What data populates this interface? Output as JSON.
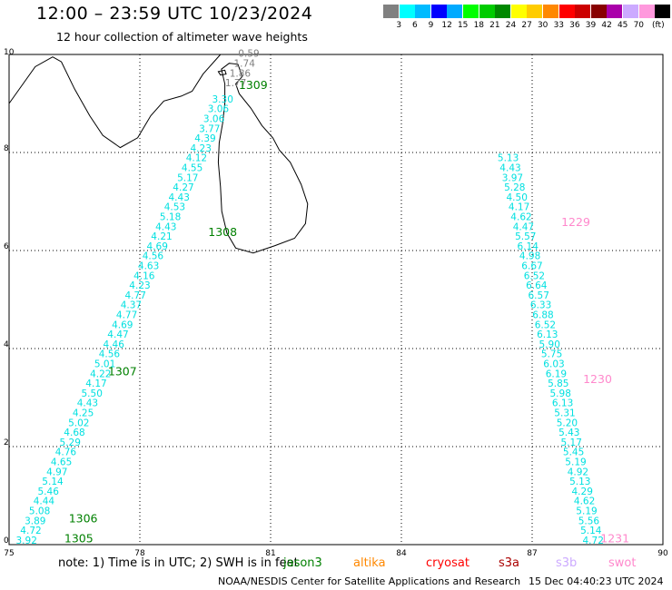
{
  "header": {
    "title": "12:00 – 23:59 UTC 10/23/2024",
    "subtitle": "12 hour collection of altimeter wave heights"
  },
  "legend": {
    "unit": "(ft)",
    "items": [
      {
        "label": "",
        "color": "#808080"
      },
      {
        "label": "3",
        "color": "#00ffff"
      },
      {
        "label": "6",
        "color": "#00bbff"
      },
      {
        "label": "9",
        "color": "#0000ff"
      },
      {
        "label": "12",
        "color": "#00aaff"
      },
      {
        "label": "15",
        "color": "#00ff00"
      },
      {
        "label": "18",
        "color": "#00cc00"
      },
      {
        "label": "21",
        "color": "#008800"
      },
      {
        "label": "24",
        "color": "#ffff00"
      },
      {
        "label": "27",
        "color": "#ffcc00"
      },
      {
        "label": "30",
        "color": "#ff8800"
      },
      {
        "label": "33",
        "color": "#ff0000"
      },
      {
        "label": "36",
        "color": "#cc0000"
      },
      {
        "label": "39",
        "color": "#880000"
      },
      {
        "label": "42",
        "color": "#aa00aa"
      },
      {
        "label": "45",
        "color": "#ccaaff"
      },
      {
        "label": "70",
        "color": "#ff99dd"
      },
      {
        "label": "",
        "color": "#000000"
      }
    ]
  },
  "map": {
    "lon_range": [
      75,
      90
    ],
    "lat_range": [
      0,
      10
    ],
    "lon_ticks": [
      "75",
      "78",
      "81",
      "84",
      "87",
      "90"
    ],
    "lat_ticks": [
      "0",
      "2",
      "4",
      "6",
      "8",
      "10"
    ],
    "grid": true,
    "colors": {
      "track": "#00e0e0",
      "gray": "#808080",
      "jason": "#008000",
      "swot": "#ff88cc"
    }
  },
  "chart_data": {
    "type": "scatter",
    "tracks": [
      {
        "pass": "1305/1306/1307/1308/1309",
        "color": "#00e0e0",
        "points": [
          {
            "lon": 75.4,
            "lat": 0.02,
            "v": "3.92"
          },
          {
            "lon": 75.5,
            "lat": 0.22,
            "v": "4.72"
          },
          {
            "lon": 75.6,
            "lat": 0.42,
            "v": "3.89"
          },
          {
            "lon": 75.7,
            "lat": 0.62,
            "v": "5.08"
          },
          {
            "lon": 75.8,
            "lat": 0.82,
            "v": "4.44"
          },
          {
            "lon": 75.9,
            "lat": 1.02,
            "v": "5.46"
          },
          {
            "lon": 76.0,
            "lat": 1.22,
            "v": "5.14"
          },
          {
            "lon": 76.1,
            "lat": 1.42,
            "v": "4.97"
          },
          {
            "lon": 76.2,
            "lat": 1.62,
            "v": "4.65"
          },
          {
            "lon": 76.3,
            "lat": 1.82,
            "v": "4.76"
          },
          {
            "lon": 76.4,
            "lat": 2.02,
            "v": "5.29"
          },
          {
            "lon": 76.5,
            "lat": 2.22,
            "v": "4.68"
          },
          {
            "lon": 76.6,
            "lat": 2.42,
            "v": "5.02"
          },
          {
            "lon": 76.7,
            "lat": 2.62,
            "v": "4.25"
          },
          {
            "lon": 76.8,
            "lat": 2.82,
            "v": "4.43"
          },
          {
            "lon": 76.9,
            "lat": 3.02,
            "v": "5.50"
          },
          {
            "lon": 77.0,
            "lat": 3.22,
            "v": "4.17"
          },
          {
            "lon": 77.1,
            "lat": 3.42,
            "v": "4.22"
          },
          {
            "lon": 77.2,
            "lat": 3.62,
            "v": "5.01"
          },
          {
            "lon": 77.3,
            "lat": 3.82,
            "v": "4.56"
          },
          {
            "lon": 77.4,
            "lat": 4.02,
            "v": "4.46"
          },
          {
            "lon": 77.5,
            "lat": 4.22,
            "v": "4.47"
          },
          {
            "lon": 77.6,
            "lat": 4.42,
            "v": "4.69"
          },
          {
            "lon": 77.7,
            "lat": 4.62,
            "v": "4.77"
          },
          {
            "lon": 77.8,
            "lat": 4.82,
            "v": "4.37"
          },
          {
            "lon": 77.9,
            "lat": 5.02,
            "v": "4.77"
          },
          {
            "lon": 78.0,
            "lat": 5.22,
            "v": "4.23"
          },
          {
            "lon": 78.1,
            "lat": 5.42,
            "v": "4.16"
          },
          {
            "lon": 78.2,
            "lat": 5.62,
            "v": "4.63"
          },
          {
            "lon": 78.3,
            "lat": 5.82,
            "v": "4.56"
          },
          {
            "lon": 78.4,
            "lat": 6.02,
            "v": "4.69"
          },
          {
            "lon": 78.5,
            "lat": 6.22,
            "v": "4.21"
          },
          {
            "lon": 78.6,
            "lat": 6.42,
            "v": "4.43"
          },
          {
            "lon": 78.7,
            "lat": 6.62,
            "v": "5.18"
          },
          {
            "lon": 78.8,
            "lat": 6.82,
            "v": "4.53"
          },
          {
            "lon": 78.9,
            "lat": 7.02,
            "v": "4.43"
          },
          {
            "lon": 79.0,
            "lat": 7.22,
            "v": "4.27"
          },
          {
            "lon": 79.1,
            "lat": 7.42,
            "v": "5.17"
          },
          {
            "lon": 79.2,
            "lat": 7.62,
            "v": "4.55"
          },
          {
            "lon": 79.3,
            "lat": 7.82,
            "v": "4.12"
          },
          {
            "lon": 79.4,
            "lat": 8.02,
            "v": "4.23"
          },
          {
            "lon": 79.5,
            "lat": 8.22,
            "v": "4.39"
          },
          {
            "lon": 79.6,
            "lat": 8.42,
            "v": "3.77"
          },
          {
            "lon": 79.7,
            "lat": 8.62,
            "v": "3.06"
          },
          {
            "lon": 79.8,
            "lat": 8.82,
            "v": "3.06"
          },
          {
            "lon": 79.9,
            "lat": 9.02,
            "v": "3.30"
          }
        ]
      },
      {
        "pass": "near-coast",
        "color": "#808080",
        "points": [
          {
            "lon": 80.2,
            "lat": 9.35,
            "v": "1.77"
          },
          {
            "lon": 80.3,
            "lat": 9.55,
            "v": "1.86"
          },
          {
            "lon": 80.4,
            "lat": 9.75,
            "v": "1.74"
          },
          {
            "lon": 80.5,
            "lat": 9.95,
            "v": "0.59"
          }
        ]
      },
      {
        "pass": "1229/1230/1231",
        "color": "#00e0e0",
        "points": [
          {
            "lon": 88.4,
            "lat": 0.02,
            "v": "4.72"
          },
          {
            "lon": 88.35,
            "lat": 0.22,
            "v": "5.14"
          },
          {
            "lon": 88.3,
            "lat": 0.42,
            "v": "5.56"
          },
          {
            "lon": 88.25,
            "lat": 0.62,
            "v": "5.19"
          },
          {
            "lon": 88.2,
            "lat": 0.82,
            "v": "4.62"
          },
          {
            "lon": 88.15,
            "lat": 1.02,
            "v": "4.29"
          },
          {
            "lon": 88.1,
            "lat": 1.22,
            "v": "5.13"
          },
          {
            "lon": 88.05,
            "lat": 1.42,
            "v": "4.92"
          },
          {
            "lon": 88.0,
            "lat": 1.62,
            "v": "5.19"
          },
          {
            "lon": 87.95,
            "lat": 1.82,
            "v": "5.45"
          },
          {
            "lon": 87.9,
            "lat": 2.02,
            "v": "5.17"
          },
          {
            "lon": 87.85,
            "lat": 2.22,
            "v": "5.43"
          },
          {
            "lon": 87.8,
            "lat": 2.42,
            "v": "5.20"
          },
          {
            "lon": 87.75,
            "lat": 2.62,
            "v": "5.31"
          },
          {
            "lon": 87.7,
            "lat": 2.82,
            "v": "6.13"
          },
          {
            "lon": 87.65,
            "lat": 3.02,
            "v": "5.98"
          },
          {
            "lon": 87.6,
            "lat": 3.22,
            "v": "5.85"
          },
          {
            "lon": 87.55,
            "lat": 3.42,
            "v": "6.19"
          },
          {
            "lon": 87.5,
            "lat": 3.62,
            "v": "6.03"
          },
          {
            "lon": 87.45,
            "lat": 3.82,
            "v": "5.75"
          },
          {
            "lon": 87.4,
            "lat": 4.02,
            "v": "5.90"
          },
          {
            "lon": 87.35,
            "lat": 4.22,
            "v": "6.13"
          },
          {
            "lon": 87.3,
            "lat": 4.42,
            "v": "6.52"
          },
          {
            "lon": 87.25,
            "lat": 4.62,
            "v": "6.88"
          },
          {
            "lon": 87.2,
            "lat": 4.82,
            "v": "6.33"
          },
          {
            "lon": 87.15,
            "lat": 5.02,
            "v": "6.57"
          },
          {
            "lon": 87.1,
            "lat": 5.22,
            "v": "6.64"
          },
          {
            "lon": 87.05,
            "lat": 5.42,
            "v": "6.52"
          },
          {
            "lon": 87.0,
            "lat": 5.62,
            "v": "6.67"
          },
          {
            "lon": 86.95,
            "lat": 5.82,
            "v": "4.98"
          },
          {
            "lon": 86.9,
            "lat": 6.02,
            "v": "6.14"
          },
          {
            "lon": 86.85,
            "lat": 6.22,
            "v": "5.57"
          },
          {
            "lon": 86.8,
            "lat": 6.42,
            "v": "4.47"
          },
          {
            "lon": 86.75,
            "lat": 6.62,
            "v": "4.62"
          },
          {
            "lon": 86.7,
            "lat": 6.82,
            "v": "4.17"
          },
          {
            "lon": 86.65,
            "lat": 7.02,
            "v": "4.50"
          },
          {
            "lon": 86.6,
            "lat": 7.22,
            "v": "5.28"
          },
          {
            "lon": 86.55,
            "lat": 7.42,
            "v": "3.97"
          },
          {
            "lon": 86.5,
            "lat": 7.62,
            "v": "4.43"
          },
          {
            "lon": 86.45,
            "lat": 7.82,
            "v": "5.13"
          }
        ]
      }
    ],
    "time_labels": [
      {
        "lon": 76.6,
        "lat": 0.05,
        "text": "1305",
        "color": "#008000"
      },
      {
        "lon": 76.7,
        "lat": 0.45,
        "text": "1306",
        "color": "#008000"
      },
      {
        "lon": 77.6,
        "lat": 3.45,
        "text": "1307",
        "color": "#008000"
      },
      {
        "lon": 79.9,
        "lat": 6.3,
        "text": "1308",
        "color": "#008000"
      },
      {
        "lon": 80.6,
        "lat": 9.3,
        "text": "1309",
        "color": "#008000"
      },
      {
        "lon": 88.0,
        "lat": 6.5,
        "text": "1229",
        "color": "#ff88cc"
      },
      {
        "lon": 88.5,
        "lat": 3.3,
        "text": "1230",
        "color": "#ff88cc"
      },
      {
        "lon": 88.9,
        "lat": 0.05,
        "text": "1231",
        "color": "#ff88cc"
      }
    ]
  },
  "footer": {
    "note": "note: 1) Time is in UTC; 2) SWH is in feet",
    "satellites": [
      {
        "name": "jason3",
        "color": "#008000"
      },
      {
        "name": "altika",
        "color": "#ff8800"
      },
      {
        "name": "cryosat",
        "color": "#ff0000"
      },
      {
        "name": "s3a",
        "color": "#aa0000"
      },
      {
        "name": "s3b",
        "color": "#ccaaff"
      },
      {
        "name": "swot",
        "color": "#ff88cc"
      }
    ],
    "credit": "NOAA/NESDIS Center for Satellite Applications and Research",
    "timestamp": "15 Dec 04:40:23 UTC 2024"
  }
}
